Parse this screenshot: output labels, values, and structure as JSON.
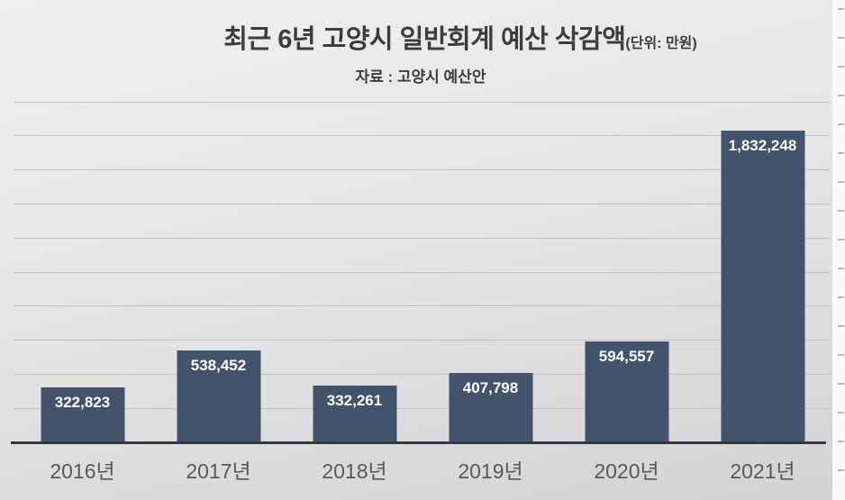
{
  "slide": {
    "title": "최근 6년 고양시 일반회계 예산 삭감액",
    "title_unit": "(단위: 만원)",
    "subtitle": "자료 : 고양시 예산안"
  },
  "chart_data": {
    "type": "bar",
    "title": "최근 6년 고양시 일반회계 예산 삭감액",
    "unit_label": "(단위: 만원)",
    "source_label": "자료 : 고양시 예산안",
    "categories": [
      "2016년",
      "2017년",
      "2018년",
      "2019년",
      "2020년",
      "2021년"
    ],
    "values": [
      322823,
      538452,
      332261,
      407798,
      594557,
      1832248
    ],
    "value_labels": [
      "322,823",
      "538,452",
      "332,261",
      "407,798",
      "594,557",
      "1,832,248"
    ],
    "xlabel": "",
    "ylabel": "",
    "ylim": [
      0,
      2000000
    ],
    "grid_step": 200000,
    "grid": true,
    "legend": false,
    "y_tick_labels_visible": false,
    "bar_color": "#42536b",
    "value_label_color": "#ffffff",
    "category_label_color": "#595959",
    "gridline_color": "#c3c3c5",
    "axis_line_color": "#35393f",
    "title_color": "#3d3d3d"
  },
  "ruler": {
    "tick_count": 17,
    "tick_spacing": 32,
    "tick_start": 9
  }
}
